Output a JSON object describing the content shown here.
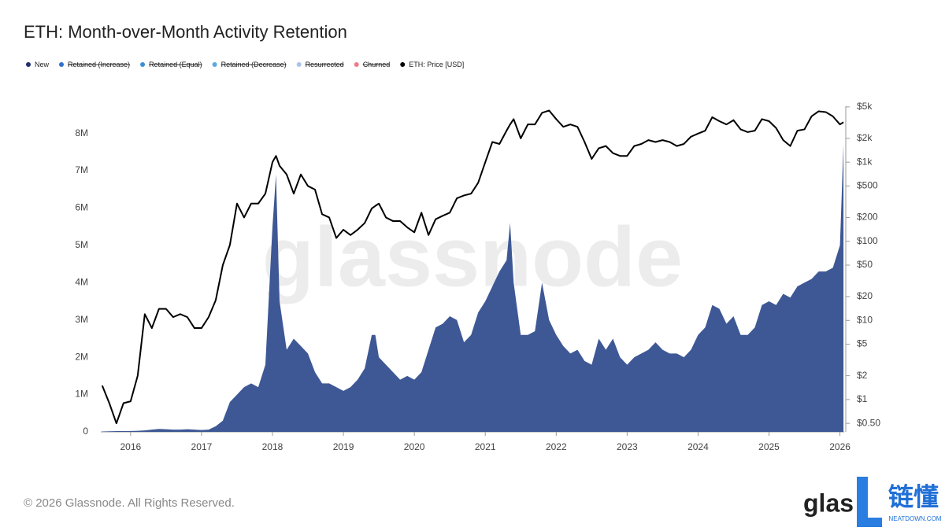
{
  "chart_data": {
    "type": "area-line",
    "title": "ETH: Month-over-Month Activity Retention",
    "watermark": "glassnode",
    "x": [
      2015.6,
      2015.7,
      2015.8,
      2015.9,
      2016.0,
      2016.1,
      2016.2,
      2016.3,
      2016.4,
      2016.5,
      2016.6,
      2016.7,
      2016.8,
      2016.9,
      2017.0,
      2017.1,
      2017.2,
      2017.3,
      2017.4,
      2017.5,
      2017.6,
      2017.7,
      2017.8,
      2017.9,
      2018.0,
      2018.05,
      2018.1,
      2018.2,
      2018.3,
      2018.4,
      2018.5,
      2018.6,
      2018.7,
      2018.8,
      2018.9,
      2019.0,
      2019.1,
      2019.2,
      2019.3,
      2019.4,
      2019.45,
      2019.5,
      2019.6,
      2019.7,
      2019.8,
      2019.9,
      2020.0,
      2020.1,
      2020.2,
      2020.3,
      2020.4,
      2020.5,
      2020.6,
      2020.7,
      2020.8,
      2020.9,
      2021.0,
      2021.1,
      2021.2,
      2021.3,
      2021.35,
      2021.4,
      2021.5,
      2021.6,
      2021.7,
      2021.8,
      2021.9,
      2022.0,
      2022.1,
      2022.2,
      2022.3,
      2022.4,
      2022.5,
      2022.6,
      2022.7,
      2022.8,
      2022.9,
      2023.0,
      2023.1,
      2023.2,
      2023.3,
      2023.4,
      2023.5,
      2023.6,
      2023.7,
      2023.8,
      2023.9,
      2024.0,
      2024.1,
      2024.2,
      2024.3,
      2024.4,
      2024.5,
      2024.6,
      2024.7,
      2024.8,
      2024.9,
      2025.0,
      2025.1,
      2025.2,
      2025.3,
      2025.4,
      2025.5,
      2025.6,
      2025.7,
      2025.8,
      2025.9,
      2026.0,
      2026.05
    ],
    "series": [
      {
        "name": "New",
        "color": "#3e5895",
        "legend_color": "#1f2f6e",
        "kind": "area",
        "values": [
          10000,
          15000,
          20000,
          20000,
          25000,
          30000,
          40000,
          60000,
          80000,
          70000,
          60000,
          60000,
          70000,
          60000,
          50000,
          60000,
          150000,
          300000,
          800000,
          1000000,
          1200000,
          1300000,
          1200000,
          1800000,
          5500000,
          6900000,
          3500000,
          2200000,
          2500000,
          2300000,
          2100000,
          1600000,
          1300000,
          1300000,
          1200000,
          1100000,
          1200000,
          1400000,
          1700000,
          2600000,
          2600000,
          2000000,
          1800000,
          1600000,
          1400000,
          1500000,
          1400000,
          1600000,
          2200000,
          2800000,
          2900000,
          3100000,
          3000000,
          2400000,
          2600000,
          3200000,
          3500000,
          3900000,
          4300000,
          4600000,
          5600000,
          4000000,
          2600000,
          2600000,
          2700000,
          4000000,
          3000000,
          2600000,
          2300000,
          2100000,
          2200000,
          1900000,
          1800000,
          2500000,
          2200000,
          2500000,
          2000000,
          1800000,
          2000000,
          2100000,
          2200000,
          2400000,
          2200000,
          2100000,
          2100000,
          2000000,
          2200000,
          2600000,
          2800000,
          3400000,
          3300000,
          2900000,
          3100000,
          2600000,
          2600000,
          2800000,
          3400000,
          3500000,
          3400000,
          3700000,
          3600000,
          3900000,
          4000000,
          4100000,
          4300000,
          4300000,
          4400000,
          5000000,
          7700000
        ]
      },
      {
        "name": "Retained (Increase)",
        "color": "#2f6fd0",
        "hidden": true
      },
      {
        "name": "Retained (Equal)",
        "color": "#3a8fd8",
        "hidden": true
      },
      {
        "name": "Retained (Decrease)",
        "color": "#5aa9e6",
        "hidden": true
      },
      {
        "name": "Resurrected",
        "color": "#a9c4ea",
        "hidden": true
      },
      {
        "name": "Churned",
        "color": "#ee7b8a",
        "hidden": true
      },
      {
        "name": "ETH: Price [USD]",
        "color": "#000000",
        "kind": "line",
        "axis": "y2",
        "values": [
          1.5,
          0.9,
          0.5,
          0.9,
          0.95,
          2,
          12,
          8,
          14,
          14,
          11,
          12,
          11,
          8,
          8,
          11,
          18,
          50,
          90,
          300,
          200,
          300,
          300,
          400,
          1000,
          1200,
          900,
          700,
          400,
          700,
          500,
          450,
          220,
          200,
          110,
          140,
          120,
          140,
          170,
          260,
          280,
          300,
          200,
          180,
          180,
          150,
          130,
          230,
          120,
          190,
          210,
          230,
          350,
          380,
          400,
          550,
          1000,
          1800,
          1700,
          2500,
          3000,
          3500,
          2000,
          3000,
          3000,
          4200,
          4500,
          3500,
          2800,
          3000,
          2800,
          1800,
          1100,
          1500,
          1600,
          1300,
          1200,
          1200,
          1600,
          1700,
          1900,
          1800,
          1900,
          1800,
          1600,
          1700,
          2100,
          2300,
          2500,
          3700,
          3300,
          3000,
          3400,
          2600,
          2400,
          2500,
          3500,
          3300,
          2700,
          1900,
          1600,
          2500,
          2600,
          3800,
          4400,
          4300,
          3800,
          3000,
          3200
        ]
      }
    ],
    "xlim": [
      2015.58,
      2026.06
    ],
    "xticks": [
      2016,
      2017,
      2018,
      2019,
      2020,
      2021,
      2022,
      2023,
      2024,
      2025,
      2026
    ],
    "ylim": [
      0,
      8730000
    ],
    "yticks": [
      0,
      {
        "value": 1000000,
        "label": "1M"
      },
      {
        "value": 2000000,
        "label": "2M"
      },
      {
        "value": 3000000,
        "label": "3M"
      },
      {
        "value": 4000000,
        "label": "4M"
      },
      {
        "value": 5000000,
        "label": "5M"
      },
      {
        "value": 6000000,
        "label": "6M"
      },
      {
        "value": 7000000,
        "label": "7M"
      },
      {
        "value": 8000000,
        "label": "8M"
      }
    ],
    "y2lim": [
      0.39,
      5100
    ],
    "y2_log": true,
    "y2ticks": [
      {
        "value": 0.5,
        "label": "$0.50"
      },
      {
        "value": 1,
        "label": "$1"
      },
      {
        "value": 2,
        "label": "$2"
      },
      {
        "value": 5,
        "label": "$5"
      },
      {
        "value": 10,
        "label": "$10"
      },
      {
        "value": 20,
        "label": "$20"
      },
      {
        "value": 50,
        "label": "$50"
      },
      {
        "value": 100,
        "label": "$100"
      },
      {
        "value": 200,
        "label": "$200"
      },
      {
        "value": 500,
        "label": "$500"
      },
      {
        "value": 1000,
        "label": "$1k"
      },
      {
        "value": 2000,
        "label": "$2k"
      },
      {
        "value": 5000,
        "label": "$5k"
      }
    ]
  },
  "footer": {
    "copyright": "© 2026 Glassnode. All Rights Reserved.",
    "logo": "glas",
    "badge": "链懂",
    "badge_sub": "NEATDOWN.COM"
  }
}
